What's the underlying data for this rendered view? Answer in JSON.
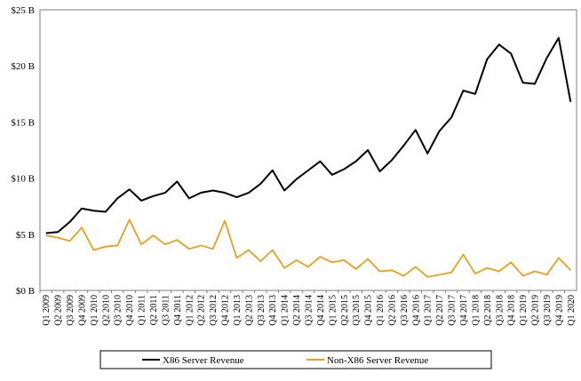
{
  "chart_data": {
    "type": "line",
    "title": "",
    "xlabel": "",
    "ylabel": "",
    "ylim": [
      0,
      25
    ],
    "y_ticks": [
      0,
      5,
      10,
      15,
      20,
      25
    ],
    "y_tick_labels": [
      "$0 B",
      "$5 B",
      "$10 B",
      "$15 B",
      "$20 B",
      "$25 B"
    ],
    "grid": false,
    "legend_position": "bottom",
    "categories": [
      "Q1 2009",
      "Q2 2009",
      "Q3 2009",
      "Q4 2009",
      "Q1 2010",
      "Q2 2010",
      "Q3 2010",
      "Q4 2010",
      "Q1 2011",
      "Q2 2011",
      "Q3 2011",
      "Q4 2011",
      "Q1 2012",
      "Q2 2012",
      "Q3 2012",
      "Q4 2012",
      "Q1 2013",
      "Q2 2013",
      "Q3 2013",
      "Q4 2013",
      "Q1 2014",
      "Q2 2014",
      "Q3 2014",
      "Q4 2014",
      "Q1 2015",
      "Q2 2015",
      "Q3 2015",
      "Q4 2015",
      "Q1 2016",
      "Q2 2016",
      "Q3 2016",
      "Q4 2016",
      "Q1 2017",
      "Q2 2017",
      "Q3 2017",
      "Q4 2017",
      "Q1 2018",
      "Q2 2018",
      "Q3 2018",
      "Q4 2018",
      "Q1 2019",
      "Q2 2019",
      "Q3 2019",
      "Q4 2019",
      "Q1 2020"
    ],
    "series": [
      {
        "name": "X86 Server Revenue",
        "color": "#000000",
        "values": [
          5.1,
          5.2,
          6.1,
          7.3,
          7.1,
          7.0,
          8.2,
          9.0,
          8.0,
          8.4,
          8.7,
          9.7,
          8.2,
          8.7,
          8.9,
          8.7,
          8.3,
          8.7,
          9.5,
          10.7,
          8.9,
          9.9,
          10.7,
          11.5,
          10.3,
          10.8,
          11.5,
          12.5,
          10.6,
          11.6,
          12.9,
          14.3,
          12.2,
          14.2,
          15.4,
          17.8,
          17.5,
          20.6,
          21.9,
          21.1,
          18.5,
          18.4,
          20.7,
          22.5,
          16.8
        ]
      },
      {
        "name": "Non-X86 Server Revenue",
        "color": "#E8A020",
        "values": [
          4.9,
          4.7,
          4.4,
          5.6,
          3.6,
          3.9,
          4.0,
          6.3,
          4.1,
          4.9,
          4.1,
          4.5,
          3.7,
          4.0,
          3.7,
          6.2,
          2.9,
          3.6,
          2.6,
          3.6,
          2.0,
          2.7,
          2.1,
          3.0,
          2.5,
          2.7,
          1.9,
          2.8,
          1.7,
          1.8,
          1.3,
          2.1,
          1.2,
          1.4,
          1.6,
          3.2,
          1.5,
          2.0,
          1.7,
          2.5,
          1.3,
          1.7,
          1.4,
          2.9,
          1.8
        ]
      }
    ]
  }
}
